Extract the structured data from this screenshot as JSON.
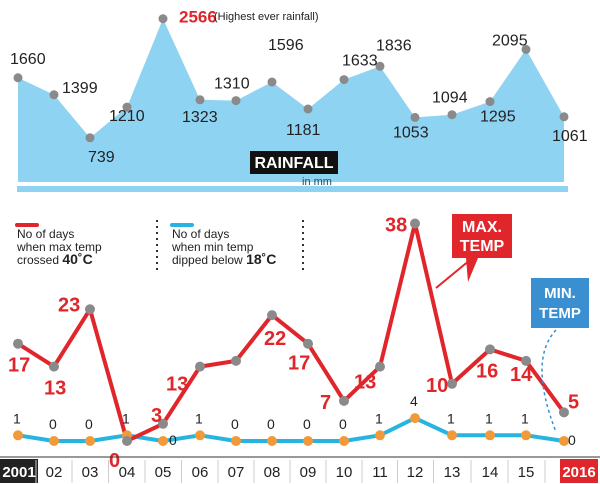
{
  "chart_data": [
    {
      "type": "area",
      "title": "RAINFALL",
      "unit": "in mm",
      "categories": [
        "2001",
        "02",
        "03",
        "04",
        "05",
        "06",
        "07",
        "08",
        "09",
        "10",
        "11",
        "12",
        "13",
        "14",
        "15",
        "2016"
      ],
      "values": [
        1660,
        1399,
        739,
        1210,
        2566,
        1323,
        1310,
        1596,
        1181,
        1633,
        1836,
        1053,
        1094,
        1295,
        2095,
        1061
      ],
      "highlight": {
        "index": 4,
        "note": "(Highest ever rainfall)"
      },
      "ylim": [
        0,
        2700
      ],
      "color": "#8fd3f2"
    },
    {
      "type": "line",
      "categories": [
        "2001",
        "02",
        "03",
        "04",
        "05",
        "06",
        "07",
        "08",
        "09",
        "10",
        "11",
        "12",
        "13",
        "14",
        "15",
        "2016"
      ],
      "ylim": [
        0,
        40
      ],
      "series": [
        {
          "name": "MAX. TEMP",
          "legend": "No of days when max temp crossed",
          "threshold": "40˚C",
          "color": "#e0262b",
          "values": [
            17,
            13,
            23,
            0,
            3,
            13,
            14,
            22,
            17,
            7,
            13,
            38,
            10,
            16,
            14,
            5
          ],
          "labels": [
            "17",
            "13",
            "23",
            "0",
            "3",
            "13",
            "",
            "22",
            "17",
            "7",
            "13",
            "38",
            "10",
            "16",
            "14",
            "5"
          ]
        },
        {
          "name": "MIN. TEMP",
          "legend": "No of days when min temp dipped below",
          "threshold": "18˚C",
          "color": "#28b4e0",
          "values": [
            1,
            0,
            0,
            1,
            0,
            1,
            0,
            0,
            0,
            0,
            1,
            4,
            1,
            1,
            1,
            0
          ],
          "labels": [
            "1",
            "0",
            "0",
            "1",
            "0",
            "1",
            "0",
            "0",
            "0",
            "0",
            "1",
            "4",
            "1",
            "1",
            "1",
            "0"
          ]
        }
      ],
      "callouts": {
        "max": "MAX.\nTEMP",
        "min": "MIN.\nTEMP"
      }
    }
  ],
  "axis": {
    "first_label": "2001",
    "last_label": "2016",
    "first_bg": "#222222",
    "last_bg": "#e0262b"
  },
  "colors": {
    "marker": "#8a8a8a",
    "min_marker": "#f29a3a",
    "callout_max": "#e0262b",
    "callout_min": "#3a8fd0"
  }
}
